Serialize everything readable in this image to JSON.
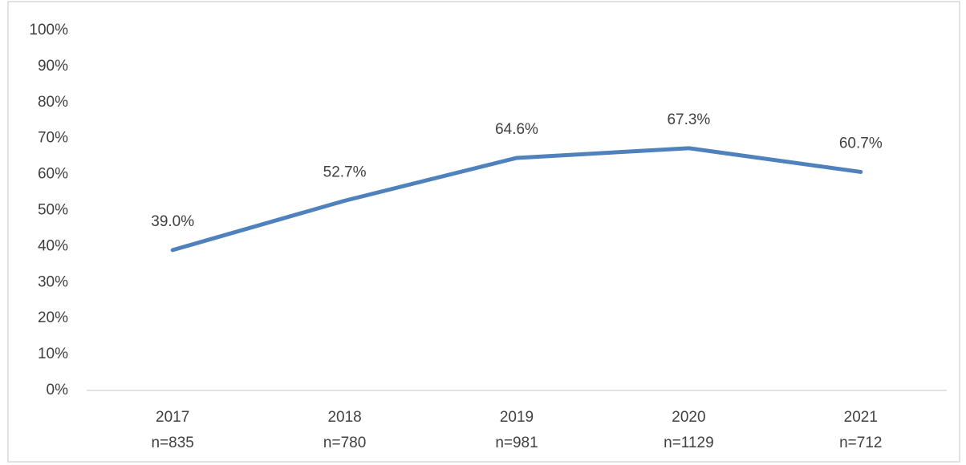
{
  "chart_data": {
    "type": "line",
    "categories": [
      "2017",
      "2018",
      "2019",
      "2020",
      "2021"
    ],
    "category_notes": [
      "n=835",
      "n=780",
      "n=981",
      "n=1129",
      "n=712"
    ],
    "series": [
      {
        "color": "#4f81bd",
        "values": [
          39.0,
          52.7,
          64.6,
          67.3,
          60.7
        ],
        "value_labels": [
          "39.0%",
          "52.7%",
          "64.6%",
          "67.3%",
          "60.7%"
        ]
      }
    ],
    "ylim": [
      0,
      100
    ],
    "yticks": [
      {
        "value": 0,
        "label": "0%"
      },
      {
        "value": 10,
        "label": "10%"
      },
      {
        "value": 20,
        "label": "20%"
      },
      {
        "value": 30,
        "label": "30%"
      },
      {
        "value": 40,
        "label": "40%"
      },
      {
        "value": 50,
        "label": "50%"
      },
      {
        "value": 60,
        "label": "60%"
      },
      {
        "value": 70,
        "label": "70%"
      },
      {
        "value": 80,
        "label": "80%"
      },
      {
        "value": 90,
        "label": "90%"
      },
      {
        "value": 100,
        "label": "100%"
      }
    ],
    "grid": false
  }
}
